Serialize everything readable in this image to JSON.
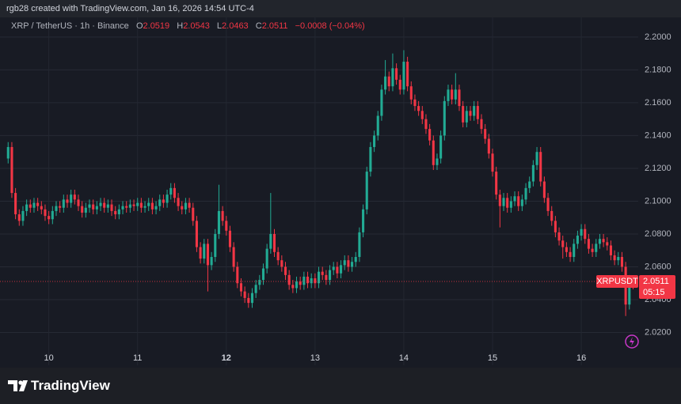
{
  "header": {
    "credit": "rgb28 created with TradingView.com, Jan 16, 2026 14:54 UTC-4"
  },
  "chart_data": {
    "type": "candlestick",
    "symbol": "XRP / TetherUS · 1h · Binance",
    "ohlc_labels": [
      "O",
      "H",
      "L",
      "C"
    ],
    "change_label": "−0.0008 (−0.04%)",
    "ticker": "XRPUSDT",
    "countdown": "05:15",
    "up_color": "#22ab94",
    "down_color": "#f23645",
    "grid": true,
    "xlim": [
      -2.2,
      170.4
    ],
    "xticks": [
      {
        "value": 11,
        "label": "10"
      },
      {
        "value": 35,
        "label": "11"
      },
      {
        "value": 59,
        "label": "12",
        "bold": true
      },
      {
        "value": 83,
        "label": "13"
      },
      {
        "value": 107,
        "label": "14"
      },
      {
        "value": 131,
        "label": "15"
      },
      {
        "value": 155,
        "label": "16"
      }
    ],
    "ylim": [
      2.0,
      2.212
    ],
    "yticks": [
      {
        "value": 2.02,
        "label": "2.0200"
      },
      {
        "value": 2.04,
        "label": "2.0400"
      },
      {
        "value": 2.06,
        "label": "2.0600"
      },
      {
        "value": 2.08,
        "label": "2.0800"
      },
      {
        "value": 2.1,
        "label": "2.1000"
      },
      {
        "value": 2.12,
        "label": "2.1200"
      },
      {
        "value": 2.14,
        "label": "2.1400"
      },
      {
        "value": 2.16,
        "label": "2.1600"
      },
      {
        "value": 2.18,
        "label": "2.1800"
      },
      {
        "value": 2.2,
        "label": "2.2000"
      }
    ],
    "open": [
      2.126,
      2.133,
      2.105,
      2.092,
      2.088,
      2.094,
      2.098,
      2.096,
      2.099,
      2.097,
      2.095,
      2.091,
      2.089,
      2.094,
      2.097,
      2.096,
      2.101,
      2.099,
      2.104,
      2.101,
      2.097,
      2.093,
      2.096,
      2.098,
      2.095,
      2.097,
      2.099,
      2.096,
      2.098,
      2.094,
      2.092,
      2.095,
      2.097,
      2.096,
      2.098,
      2.097,
      2.099,
      2.096,
      2.097,
      2.099,
      2.095,
      2.097,
      2.101,
      2.099,
      2.104,
      2.108,
      2.102,
      2.097,
      2.095,
      2.099,
      2.096,
      2.088,
      2.072,
      2.065,
      2.074,
      2.061,
      2.066,
      2.08,
      2.094,
      2.088,
      2.082,
      2.072,
      2.06,
      2.05,
      2.045,
      2.041,
      2.038,
      2.044,
      2.049,
      2.052,
      2.059,
      2.071,
      2.08,
      2.069,
      2.064,
      2.06,
      2.055,
      2.049,
      2.047,
      2.051,
      2.049,
      2.054,
      2.05,
      2.053,
      2.05,
      2.057,
      2.055,
      2.052,
      2.058,
      2.06,
      2.056,
      2.061,
      2.064,
      2.06,
      2.063,
      2.066,
      2.081,
      2.095,
      2.118,
      2.133,
      2.14,
      2.152,
      2.168,
      2.176,
      2.17,
      2.181,
      2.174,
      2.168,
      2.185,
      2.17,
      2.162,
      2.158,
      2.155,
      2.15,
      2.144,
      2.137,
      2.122,
      2.126,
      2.14,
      2.161,
      2.168,
      2.162,
      2.168,
      2.158,
      2.148,
      2.155,
      2.152,
      2.158,
      2.15,
      2.144,
      2.138,
      2.129,
      2.118,
      2.104,
      2.097,
      2.102,
      2.096,
      2.1,
      2.103,
      2.097,
      2.101,
      2.108,
      2.112,
      2.122,
      2.13,
      2.112,
      2.102,
      2.094,
      2.088,
      2.081,
      2.076,
      2.072,
      2.069,
      2.066,
      2.074,
      2.079,
      2.083,
      2.077,
      2.071,
      2.069,
      2.074,
      2.077,
      2.075,
      2.073,
      2.067,
      2.064,
      2.066,
      2.06,
      2.037,
      2.0519
    ],
    "high": [
      2.136,
      2.136,
      2.108,
      2.095,
      2.097,
      2.101,
      2.101,
      2.102,
      2.102,
      2.1,
      2.098,
      2.094,
      2.097,
      2.1,
      2.1,
      2.104,
      2.104,
      2.107,
      2.107,
      2.104,
      2.1,
      2.099,
      2.101,
      2.101,
      2.1,
      2.102,
      2.102,
      2.101,
      2.101,
      2.097,
      2.098,
      2.1,
      2.1,
      2.101,
      2.101,
      2.102,
      2.102,
      2.1,
      2.102,
      2.102,
      2.1,
      2.104,
      2.104,
      2.107,
      2.111,
      2.111,
      2.105,
      2.1,
      2.102,
      2.102,
      2.099,
      2.091,
      2.075,
      2.077,
      2.077,
      2.069,
      2.083,
      2.11,
      2.097,
      2.091,
      2.085,
      2.075,
      2.063,
      2.053,
      2.048,
      2.044,
      2.047,
      2.052,
      2.055,
      2.062,
      2.074,
      2.105,
      2.083,
      2.072,
      2.067,
      2.063,
      2.058,
      2.052,
      2.054,
      2.054,
      2.057,
      2.057,
      2.056,
      2.056,
      2.06,
      2.06,
      2.058,
      2.061,
      2.063,
      2.063,
      2.064,
      2.067,
      2.067,
      2.066,
      2.069,
      2.084,
      2.098,
      2.121,
      2.136,
      2.143,
      2.155,
      2.171,
      2.186,
      2.179,
      2.19,
      2.184,
      2.177,
      2.192,
      2.188,
      2.173,
      2.165,
      2.161,
      2.158,
      2.153,
      2.147,
      2.14,
      2.129,
      2.143,
      2.164,
      2.171,
      2.171,
      2.178,
      2.171,
      2.161,
      2.158,
      2.158,
      2.161,
      2.161,
      2.153,
      2.147,
      2.141,
      2.132,
      2.121,
      2.107,
      2.105,
      2.105,
      2.103,
      2.106,
      2.106,
      2.104,
      2.111,
      2.115,
      2.125,
      2.133,
      2.133,
      2.115,
      2.105,
      2.097,
      2.091,
      2.084,
      2.079,
      2.075,
      2.072,
      2.077,
      2.082,
      2.086,
      2.086,
      2.08,
      2.074,
      2.077,
      2.08,
      2.08,
      2.078,
      2.076,
      2.07,
      2.069,
      2.069,
      2.063,
      2.055,
      2.0543
    ],
    "low": [
      2.123,
      2.102,
      2.089,
      2.085,
      2.085,
      2.091,
      2.093,
      2.093,
      2.094,
      2.092,
      2.088,
      2.086,
      2.086,
      2.091,
      2.093,
      2.093,
      2.096,
      2.096,
      2.098,
      2.094,
      2.09,
      2.09,
      2.093,
      2.092,
      2.092,
      2.094,
      2.093,
      2.093,
      2.091,
      2.089,
      2.089,
      2.092,
      2.093,
      2.093,
      2.094,
      2.094,
      2.093,
      2.093,
      2.094,
      2.092,
      2.092,
      2.094,
      2.096,
      2.096,
      2.101,
      2.099,
      2.094,
      2.092,
      2.092,
      2.093,
      2.085,
      2.069,
      2.062,
      2.062,
      2.045,
      2.058,
      2.063,
      2.077,
      2.085,
      2.079,
      2.069,
      2.057,
      2.047,
      2.042,
      2.038,
      2.035,
      2.035,
      2.041,
      2.046,
      2.049,
      2.056,
      2.068,
      2.066,
      2.061,
      2.057,
      2.052,
      2.046,
      2.044,
      2.044,
      2.046,
      2.046,
      2.047,
      2.047,
      2.047,
      2.047,
      2.052,
      2.049,
      2.049,
      2.055,
      2.053,
      2.053,
      2.058,
      2.057,
      2.057,
      2.06,
      2.063,
      2.078,
      2.092,
      2.115,
      2.13,
      2.137,
      2.149,
      2.165,
      2.167,
      2.167,
      2.171,
      2.165,
      2.165,
      2.167,
      2.159,
      2.155,
      2.152,
      2.147,
      2.141,
      2.134,
      2.119,
      2.119,
      2.123,
      2.137,
      2.158,
      2.159,
      2.159,
      2.155,
      2.145,
      2.145,
      2.149,
      2.149,
      2.147,
      2.141,
      2.135,
      2.126,
      2.115,
      2.101,
      2.084,
      2.094,
      2.093,
      2.093,
      2.097,
      2.094,
      2.094,
      2.098,
      2.105,
      2.109,
      2.119,
      2.109,
      2.099,
      2.091,
      2.085,
      2.078,
      2.073,
      2.065,
      2.066,
      2.063,
      2.063,
      2.071,
      2.076,
      2.074,
      2.068,
      2.066,
      2.066,
      2.071,
      2.072,
      2.07,
      2.064,
      2.061,
      2.061,
      2.057,
      2.03,
      2.034,
      2.0463
    ],
    "close": [
      2.133,
      2.105,
      2.092,
      2.088,
      2.094,
      2.098,
      2.096,
      2.099,
      2.097,
      2.095,
      2.091,
      2.089,
      2.094,
      2.097,
      2.096,
      2.101,
      2.099,
      2.104,
      2.101,
      2.097,
      2.093,
      2.096,
      2.098,
      2.095,
      2.097,
      2.099,
      2.096,
      2.098,
      2.094,
      2.092,
      2.095,
      2.097,
      2.096,
      2.098,
      2.097,
      2.099,
      2.096,
      2.097,
      2.099,
      2.095,
      2.097,
      2.101,
      2.099,
      2.104,
      2.108,
      2.102,
      2.097,
      2.095,
      2.099,
      2.096,
      2.088,
      2.072,
      2.065,
      2.074,
      2.061,
      2.066,
      2.08,
      2.094,
      2.088,
      2.082,
      2.072,
      2.06,
      2.05,
      2.045,
      2.041,
      2.038,
      2.044,
      2.049,
      2.052,
      2.059,
      2.071,
      2.08,
      2.069,
      2.064,
      2.06,
      2.055,
      2.049,
      2.047,
      2.051,
      2.049,
      2.054,
      2.05,
      2.053,
      2.05,
      2.057,
      2.055,
      2.052,
      2.058,
      2.06,
      2.056,
      2.061,
      2.064,
      2.06,
      2.063,
      2.066,
      2.081,
      2.095,
      2.118,
      2.133,
      2.14,
      2.152,
      2.168,
      2.176,
      2.17,
      2.181,
      2.174,
      2.168,
      2.185,
      2.17,
      2.162,
      2.158,
      2.155,
      2.15,
      2.144,
      2.137,
      2.122,
      2.126,
      2.14,
      2.161,
      2.168,
      2.162,
      2.168,
      2.158,
      2.148,
      2.155,
      2.152,
      2.158,
      2.15,
      2.144,
      2.138,
      2.129,
      2.118,
      2.104,
      2.097,
      2.102,
      2.096,
      2.1,
      2.103,
      2.097,
      2.101,
      2.108,
      2.112,
      2.122,
      2.13,
      2.112,
      2.102,
      2.094,
      2.088,
      2.081,
      2.076,
      2.072,
      2.069,
      2.066,
      2.074,
      2.079,
      2.083,
      2.077,
      2.071,
      2.069,
      2.074,
      2.077,
      2.075,
      2.073,
      2.067,
      2.064,
      2.066,
      2.06,
      2.037,
      2.0519,
      2.0511
    ]
  },
  "footer": {
    "brand": "TradingView"
  }
}
